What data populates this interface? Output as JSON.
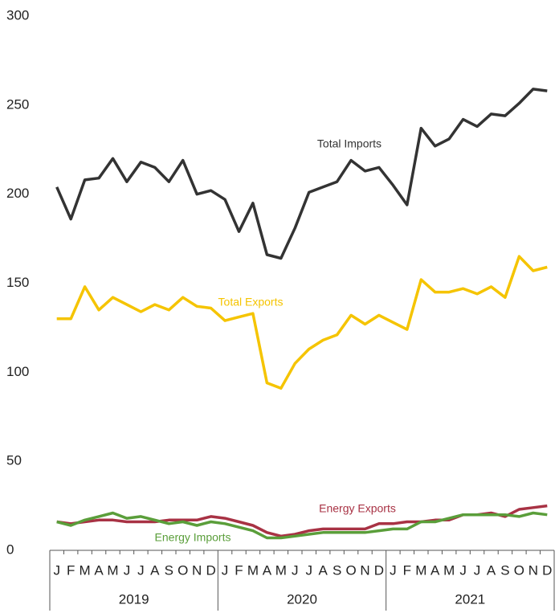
{
  "chart_data": {
    "type": "line",
    "categories": [
      "J",
      "F",
      "M",
      "A",
      "M",
      "J",
      "J",
      "A",
      "S",
      "O",
      "N",
      "D",
      "J",
      "F",
      "M",
      "A",
      "M",
      "J",
      "J",
      "A",
      "S",
      "O",
      "N",
      "D",
      "J",
      "F",
      "M",
      "A",
      "M",
      "J",
      "J",
      "A",
      "S",
      "O",
      "N",
      "D"
    ],
    "years": [
      "2019",
      "2020",
      "2021"
    ],
    "series": [
      {
        "name": "Total Imports",
        "color": "#333333",
        "values": [
          204,
          186,
          208,
          209,
          220,
          207,
          218,
          215,
          207,
          219,
          200,
          202,
          197,
          179,
          195,
          166,
          164,
          181,
          201,
          204,
          207,
          219,
          213,
          215,
          205,
          194,
          237,
          227,
          231,
          242,
          238,
          245,
          244,
          251,
          259,
          258
        ]
      },
      {
        "name": "Total Exports",
        "color": "#f5c400",
        "values": [
          130,
          130,
          148,
          135,
          142,
          138,
          134,
          138,
          135,
          142,
          137,
          136,
          129,
          131,
          133,
          94,
          91,
          105,
          113,
          118,
          121,
          132,
          127,
          132,
          128,
          124,
          152,
          145,
          145,
          147,
          144,
          148,
          142,
          165,
          157,
          159
        ]
      },
      {
        "name": "Energy Exports",
        "color": "#a83244",
        "values": [
          16,
          15,
          16,
          17,
          17,
          16,
          16,
          16,
          17,
          17,
          17,
          19,
          18,
          16,
          14,
          10,
          8,
          9,
          11,
          12,
          12,
          12,
          12,
          15,
          15,
          16,
          16,
          17,
          17,
          20,
          20,
          21,
          19,
          23,
          24,
          25
        ]
      },
      {
        "name": "Energy Imports",
        "color": "#5a9e3a",
        "values": [
          16,
          14,
          17,
          19,
          21,
          18,
          19,
          17,
          15,
          16,
          14,
          16,
          15,
          13,
          11,
          7,
          7,
          8,
          9,
          10,
          10,
          10,
          10,
          11,
          12,
          12,
          16,
          16,
          18,
          20,
          20,
          20,
          20,
          19,
          21,
          20
        ]
      }
    ],
    "ylim": [
      0,
      300
    ],
    "yticks": [
      0,
      50,
      100,
      150,
      200,
      250,
      300
    ],
    "grid": false
  }
}
